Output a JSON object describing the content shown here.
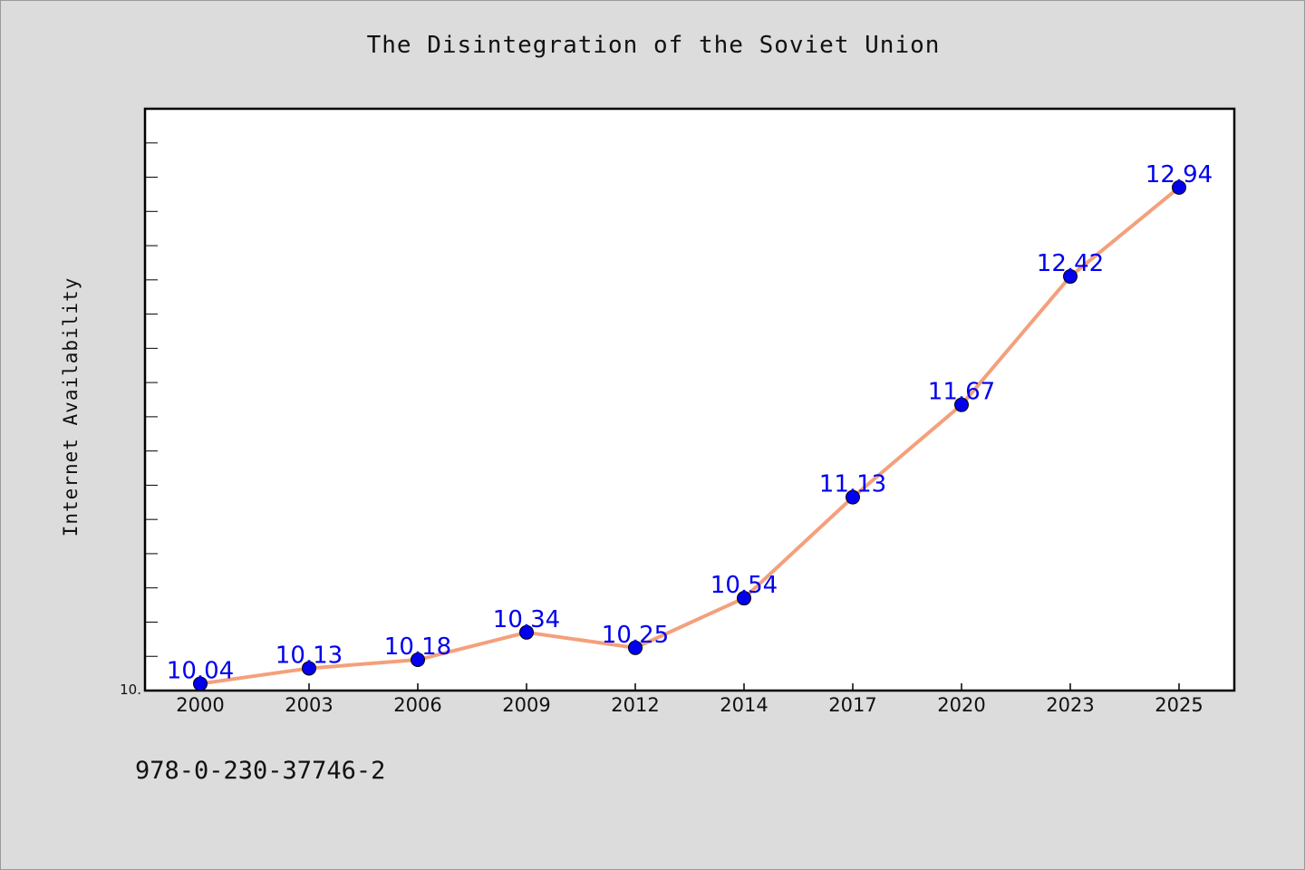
{
  "chart_data": {
    "type": "line",
    "title": "The Disintegration of the Soviet Union",
    "xlabel": "",
    "ylabel": "Internet Availability",
    "categories": [
      "2000",
      "2003",
      "2006",
      "2009",
      "2012",
      "2014",
      "2017",
      "2020",
      "2023",
      "2025"
    ],
    "series": [
      {
        "values": [
          10.04,
          10.13,
          10.18,
          10.34,
          10.25,
          10.54,
          11.13,
          11.67,
          12.42,
          12.94
        ]
      }
    ],
    "data_labels": [
      "10.04",
      "10.13",
      "10.18",
      "10.34",
      "10.25",
      "10.54",
      "11.13",
      "11.67",
      "12.42",
      "12.94"
    ],
    "ylim": [
      10.0,
      13.4
    ],
    "y_tick_label": "10.",
    "grid": false,
    "legend": "none",
    "colors": {
      "line": "#f4a07c",
      "marker": "#0000ee",
      "label": "#0000ee",
      "plot_background": "#ffffff",
      "page_background": "#dcdcdc"
    }
  },
  "footer": {
    "code": "978-0-230-37746-2"
  }
}
